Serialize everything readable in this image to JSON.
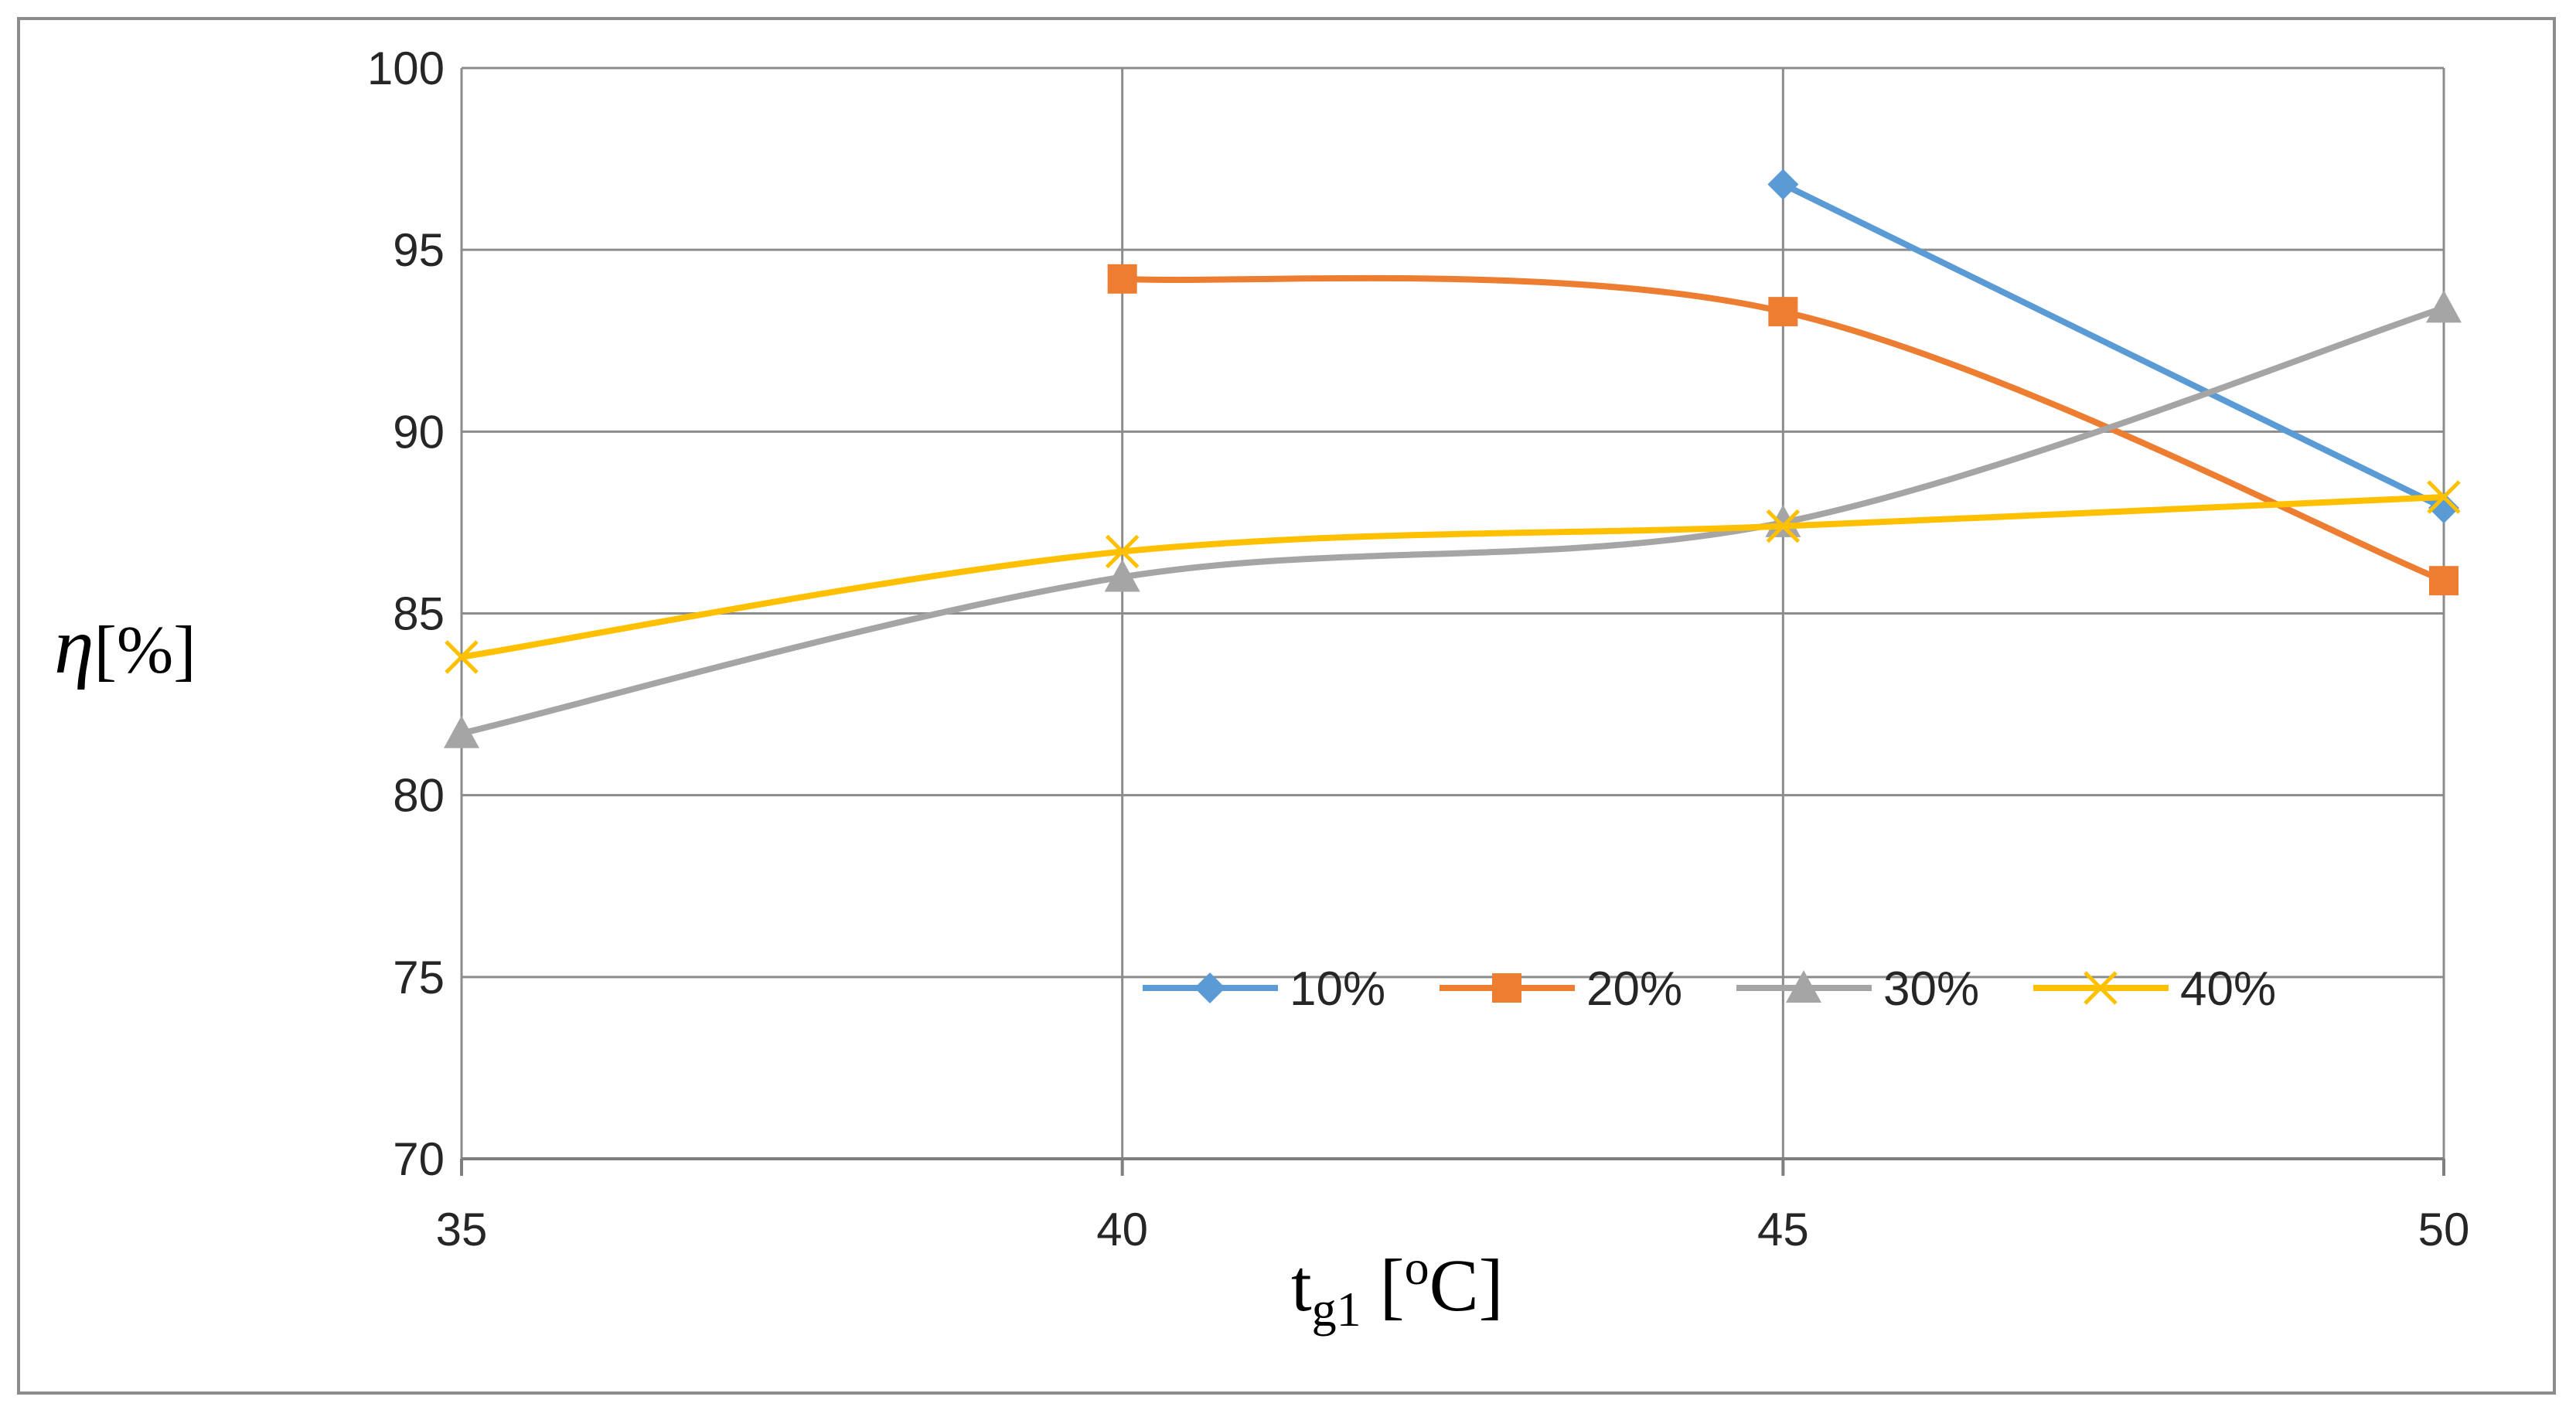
{
  "chart_data": {
    "type": "line",
    "title": "",
    "xlabel": {
      "main": "t",
      "sub": "g1",
      "open": " [",
      "sup": "o",
      "unit": "C]"
    },
    "ylabel": {
      "symbol": "η",
      "unit": "[%]"
    },
    "x": [
      35,
      40,
      45,
      50
    ],
    "x_tick_labels": [
      "35",
      "40",
      "45",
      "50"
    ],
    "ylim": [
      70,
      100
    ],
    "y_ticks": [
      70,
      75,
      80,
      85,
      90,
      95,
      100
    ],
    "y_tick_labels": [
      "70",
      "75",
      "80",
      "85",
      "90",
      "95",
      "100"
    ],
    "grid": true,
    "smooth": true,
    "legend_position": "inside-bottom-center",
    "series": [
      {
        "name": "10%",
        "marker": "diamond",
        "color": "#5b9bd5",
        "values": [
          null,
          null,
          96.8,
          87.9
        ]
      },
      {
        "name": "20%",
        "marker": "square",
        "color": "#ed7d31",
        "values": [
          null,
          94.2,
          93.3,
          85.9
        ]
      },
      {
        "name": "30%",
        "marker": "triangle",
        "color": "#a5a5a5",
        "values": [
          81.7,
          86.0,
          87.5,
          93.4
        ]
      },
      {
        "name": "40%",
        "marker": "x",
        "color": "#ffc000",
        "values": [
          83.8,
          86.7,
          87.4,
          88.2
        ]
      }
    ]
  }
}
